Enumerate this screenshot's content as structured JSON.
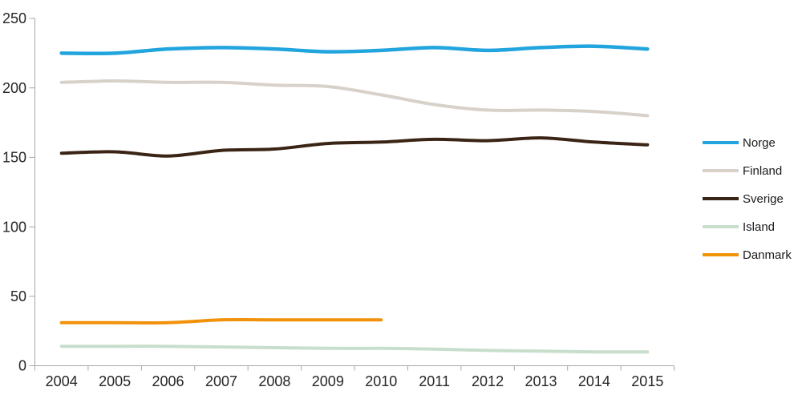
{
  "page": {
    "background": "#ffffff",
    "axis_color": "#a7a7a7",
    "tick_text_color": "#262626"
  },
  "chart_data": {
    "type": "line",
    "title": "",
    "xlabel": "",
    "ylabel": "",
    "smoothed": true,
    "grid": false,
    "legend_position": "right",
    "ylim": [
      0,
      250
    ],
    "yticks": [
      0,
      50,
      100,
      150,
      200,
      250
    ],
    "categories": [
      "2004",
      "2005",
      "2006",
      "2007",
      "2008",
      "2009",
      "2010",
      "2011",
      "2012",
      "2013",
      "2014",
      "2015"
    ],
    "series": [
      {
        "name": "Norge",
        "color": "#22a5de",
        "stroke_width": 4.5,
        "values": [
          225,
          225,
          228,
          229,
          228,
          226,
          227,
          229,
          227,
          229,
          230,
          228
        ]
      },
      {
        "name": "Finland",
        "color": "#d8d1ca",
        "stroke_width": 4,
        "values": [
          204,
          205,
          204,
          204,
          202,
          201,
          195,
          188,
          184,
          184,
          183,
          180
        ]
      },
      {
        "name": "Sverige",
        "color": "#3a2415",
        "stroke_width": 4,
        "values": [
          153,
          154,
          151,
          155,
          156,
          160,
          161,
          163,
          162,
          164,
          161,
          159
        ]
      },
      {
        "name": "Island",
        "color": "#c8decc",
        "stroke_width": 4,
        "values": [
          14,
          14,
          14,
          13.5,
          13,
          12.5,
          12.5,
          12,
          11,
          10.5,
          10,
          10
        ]
      },
      {
        "name": "Danmark",
        "color": "#f2920b",
        "stroke_width": 4,
        "values": [
          31,
          31,
          31,
          33,
          33,
          33,
          33,
          null,
          null,
          null,
          null,
          null
        ]
      }
    ]
  }
}
